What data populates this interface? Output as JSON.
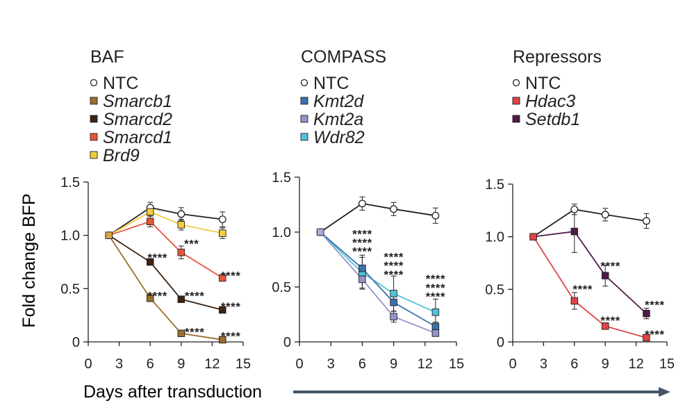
{
  "chart_data": [
    {
      "type": "line",
      "title": "BAF",
      "xlabel": "Days after transduction",
      "ylabel": "Fold change BFP",
      "xlim": [
        0,
        15
      ],
      "ylim": [
        0,
        1.5
      ],
      "xticks": [
        0,
        3,
        6,
        9,
        12,
        15
      ],
      "xtick_labels": [
        "0",
        "3",
        "6",
        "9",
        "12",
        "15"
      ],
      "yticks": [
        0,
        0.5,
        1.0,
        1.5
      ],
      "ytick_labels": [
        "0",
        "0.5",
        "1.0",
        "1.5"
      ],
      "legend": [
        "NTC",
        "Smarcb1",
        "Smarcd2",
        "Smarcd1",
        "Brd9"
      ],
      "series": [
        {
          "name": "NTC",
          "color": "#ffffff",
          "line": "#231f20",
          "marker": "circle",
          "x": [
            2,
            6,
            9,
            13
          ],
          "y": [
            1.0,
            1.26,
            1.2,
            1.15
          ],
          "err": [
            0,
            0.05,
            0.06,
            0.07
          ]
        },
        {
          "name": "Brd9",
          "color": "#f2cd3c",
          "line": "#f2cd3c",
          "marker": "square",
          "x": [
            2,
            6,
            9,
            13
          ],
          "y": [
            1.0,
            1.22,
            1.1,
            1.02
          ],
          "err": [
            0,
            0.04,
            0.05,
            0.05
          ]
        },
        {
          "name": "Smarcd1",
          "color": "#e8543a",
          "line": "#e8543a",
          "marker": "square",
          "x": [
            2,
            6,
            9,
            13
          ],
          "y": [
            1.0,
            1.13,
            0.84,
            0.6
          ],
          "err": [
            0,
            0.05,
            0.06,
            0.03
          ]
        },
        {
          "name": "Smarcd2",
          "color": "#3b2412",
          "line": "#3b2412",
          "marker": "square",
          "x": [
            2,
            6,
            9,
            13
          ],
          "y": [
            1.0,
            0.75,
            0.4,
            0.3
          ],
          "err": [
            0,
            0.03,
            0.03,
            0.02
          ]
        },
        {
          "name": "Smarcb1",
          "color": "#9c6d2e",
          "line": "#9c6d2e",
          "marker": "square",
          "x": [
            2,
            6,
            9,
            13
          ],
          "y": [
            1.0,
            0.41,
            0.08,
            0.02
          ],
          "err": [
            0,
            0.03,
            0.02,
            0.01
          ]
        }
      ],
      "annotations": [
        {
          "text": "****",
          "x": 6.7,
          "y": 0.82
        },
        {
          "text": "***",
          "x": 10.0,
          "y": 0.95
        },
        {
          "text": "****",
          "x": 13.8,
          "y": 0.65
        },
        {
          "text": "****",
          "x": 6.7,
          "y": 0.46
        },
        {
          "text": "****",
          "x": 10.3,
          "y": 0.46
        },
        {
          "text": "****",
          "x": 13.8,
          "y": 0.36
        },
        {
          "text": "****",
          "x": 10.3,
          "y": 0.12
        },
        {
          "text": "****",
          "x": 13.8,
          "y": 0.08
        }
      ]
    },
    {
      "type": "line",
      "title": "COMPASS",
      "xlim": [
        0,
        15
      ],
      "ylim": [
        0,
        1.5
      ],
      "xticks": [
        0,
        3,
        6,
        9,
        12,
        15
      ],
      "xtick_labels": [
        "0",
        "3",
        "6",
        "9",
        "12",
        "15"
      ],
      "yticks": [
        0,
        0.5,
        1.0,
        1.5
      ],
      "ytick_labels": [
        "0",
        "0.5",
        "1.0",
        "1.5"
      ],
      "legend": [
        "NTC",
        "Kmt2d",
        "Kmt2a",
        "Wdr82"
      ],
      "series": [
        {
          "name": "NTC",
          "color": "#ffffff",
          "line": "#231f20",
          "marker": "circle",
          "x": [
            2,
            6,
            9,
            13
          ],
          "y": [
            1.0,
            1.26,
            1.21,
            1.15
          ],
          "err": [
            0,
            0.06,
            0.06,
            0.07
          ]
        },
        {
          "name": "Wdr82",
          "color": "#4fc3d9",
          "line": "#4fc3d9",
          "marker": "square",
          "x": [
            2,
            6,
            9,
            13
          ],
          "y": [
            1.0,
            0.63,
            0.44,
            0.27
          ],
          "err": [
            0,
            0.14,
            0.16,
            0.12
          ]
        },
        {
          "name": "Kmt2d",
          "color": "#3a72ad",
          "line": "#3a72ad",
          "marker": "square",
          "x": [
            2,
            6,
            9,
            13
          ],
          "y": [
            1.0,
            0.67,
            0.36,
            0.14
          ],
          "err": [
            0,
            0.12,
            0.08,
            0.04
          ]
        },
        {
          "name": "Kmt2a",
          "color": "#9096c9",
          "line": "#9096c9",
          "marker": "square",
          "x": [
            2,
            6,
            9,
            13
          ],
          "y": [
            1.0,
            0.57,
            0.23,
            0.08
          ],
          "err": [
            0,
            0.09,
            0.05,
            0.03
          ]
        }
      ],
      "annotations": [
        {
          "text": "****",
          "x": 6.0,
          "y": 1.01
        },
        {
          "text": "****",
          "x": 6.0,
          "y": 0.93
        },
        {
          "text": "****",
          "x": 6.0,
          "y": 0.85
        },
        {
          "text": "****",
          "x": 9.0,
          "y": 0.8
        },
        {
          "text": "****",
          "x": 9.0,
          "y": 0.72
        },
        {
          "text": "****",
          "x": 9.0,
          "y": 0.64
        },
        {
          "text": "****",
          "x": 13.0,
          "y": 0.6
        },
        {
          "text": "****",
          "x": 13.0,
          "y": 0.52
        },
        {
          "text": "****",
          "x": 13.0,
          "y": 0.44
        }
      ]
    },
    {
      "type": "line",
      "title": "Repressors",
      "xlim": [
        0,
        15
      ],
      "ylim": [
        0,
        1.5
      ],
      "xticks": [
        0,
        3,
        6,
        9,
        12,
        15
      ],
      "xtick_labels": [
        "0",
        "3",
        "6",
        "9",
        "12",
        "15"
      ],
      "yticks": [
        0,
        0.5,
        1.0,
        1.5
      ],
      "ytick_labels": [
        "0",
        "0.5",
        "1.0",
        "1.5"
      ],
      "legend": [
        "NTC",
        "Hdac3",
        "Setdb1"
      ],
      "series": [
        {
          "name": "NTC",
          "color": "#ffffff",
          "line": "#231f20",
          "marker": "circle",
          "x": [
            2,
            6,
            9,
            13
          ],
          "y": [
            1.0,
            1.26,
            1.21,
            1.15
          ],
          "err": [
            0,
            0.05,
            0.06,
            0.07
          ]
        },
        {
          "name": "Setdb1",
          "color": "#4e1a48",
          "line": "#4e1a48",
          "marker": "square",
          "x": [
            2,
            6,
            9,
            13
          ],
          "y": [
            1.0,
            1.05,
            0.63,
            0.27
          ],
          "err": [
            0,
            0.2,
            0.1,
            0.05
          ]
        },
        {
          "name": "Hdac3",
          "color": "#e04446",
          "line": "#e04446",
          "marker": "square",
          "x": [
            2,
            6,
            9,
            13
          ],
          "y": [
            1.0,
            0.39,
            0.15,
            0.04
          ],
          "err": [
            0,
            0.08,
            0.03,
            0.02
          ]
        }
      ],
      "annotations": [
        {
          "text": "****",
          "x": 9.5,
          "y": 0.75
        },
        {
          "text": "****",
          "x": 6.8,
          "y": 0.53
        },
        {
          "text": "****",
          "x": 13.8,
          "y": 0.38
        },
        {
          "text": "****",
          "x": 9.5,
          "y": 0.23
        },
        {
          "text": "****",
          "x": 13.8,
          "y": 0.1
        }
      ]
    }
  ],
  "shared": {
    "xlabel": "Days after transduction",
    "ylabel": "Fold change BFP",
    "arrow_color": "#3f5569"
  }
}
